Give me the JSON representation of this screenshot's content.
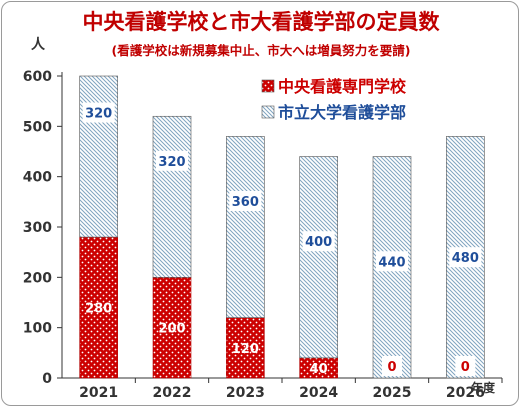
{
  "title": "中央看護学校と市大看護学部の定員数",
  "subtitle": "(看護学校は新規募集中止、市大へは増員努力を要請)",
  "colors": {
    "title": "#c00000",
    "central": "#cc0000",
    "city_hatch": "#7fa3bf",
    "city_label": "#1f4e9a"
  },
  "chart_data": {
    "type": "bar",
    "stacked": true,
    "categories": [
      "2021",
      "2022",
      "2023",
      "2024",
      "2025",
      "2026"
    ],
    "series": [
      {
        "name": "中央看護専門学校",
        "values": [
          280,
          200,
          120,
          40,
          0,
          0
        ]
      },
      {
        "name": "市立大学看護学部",
        "values": [
          320,
          320,
          360,
          400,
          440,
          480
        ]
      }
    ],
    "ylabel": "人",
    "xlabel": "年度",
    "ylim": [
      0,
      600
    ],
    "yticks": [
      0,
      100,
      200,
      300,
      400,
      500,
      600
    ],
    "legend": "top-right",
    "grid": false
  }
}
